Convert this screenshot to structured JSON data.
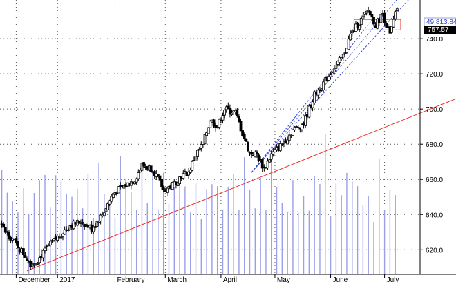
{
  "chart_data": {
    "type": "candlestick",
    "title": "",
    "xlabel": "",
    "ylabel": "",
    "ylim": [
      606,
      762
    ],
    "y_ticks": [
      620,
      640,
      660,
      680,
      700,
      720,
      740
    ],
    "y_tick_labels": [
      "620.0",
      "640.0",
      "660.0",
      "680.0",
      "700.0",
      "720.0",
      "740.0"
    ],
    "x_ticks": [
      {
        "label": "December",
        "day": 0
      },
      {
        "label": "2017",
        "day": 23
      },
      {
        "label": "February",
        "day": 55
      },
      {
        "label": "March",
        "day": 83
      },
      {
        "label": "April",
        "day": 114
      },
      {
        "label": "May",
        "day": 144
      },
      {
        "label": "June",
        "day": 175
      },
      {
        "label": "July",
        "day": 205
      }
    ],
    "grid": true,
    "price_badge": "757.57",
    "volume_badge": "49,813.84",
    "price_path": [
      [
        -9,
        634
      ],
      [
        -2,
        626
      ],
      [
        4,
        618
      ],
      [
        8,
        612
      ],
      [
        12,
        614
      ],
      [
        18,
        622
      ],
      [
        24,
        628
      ],
      [
        30,
        634
      ],
      [
        36,
        636
      ],
      [
        42,
        632
      ],
      [
        48,
        640
      ],
      [
        54,
        652
      ],
      [
        60,
        656
      ],
      [
        66,
        660
      ],
      [
        70,
        668
      ],
      [
        76,
        666
      ],
      [
        82,
        654
      ],
      [
        86,
        656
      ],
      [
        92,
        662
      ],
      [
        96,
        664
      ],
      [
        100,
        674
      ],
      [
        104,
        680
      ],
      [
        108,
        694
      ],
      [
        112,
        690
      ],
      [
        116,
        700
      ],
      [
        122,
        698
      ],
      [
        126,
        686
      ],
      [
        130,
        675
      ],
      [
        134,
        674
      ],
      [
        138,
        666
      ],
      [
        142,
        674
      ],
      [
        148,
        680
      ],
      [
        154,
        688
      ],
      [
        160,
        692
      ],
      [
        166,
        708
      ],
      [
        172,
        716
      ],
      [
        176,
        722
      ],
      [
        182,
        730
      ],
      [
        186,
        742
      ],
      [
        190,
        748
      ],
      [
        196,
        756
      ],
      [
        200,
        748
      ],
      [
        204,
        754
      ],
      [
        206,
        748
      ],
      [
        208,
        742
      ],
      [
        212,
        757.57
      ]
    ],
    "candles_per_day": 1,
    "last_day": 212,
    "trend_lines": [
      {
        "name": "long-term support",
        "color": "#ee2b24",
        "points": [
          [
            6,
            608
          ],
          [
            250,
            708
          ]
        ]
      },
      {
        "name": "upper channel",
        "color": "#3646d6",
        "dashed": true,
        "points": [
          [
            131,
            664
          ],
          [
            215,
            766
          ]
        ]
      },
      {
        "name": "middle channel",
        "color": "#3646d6",
        "dashed": true,
        "points": [
          [
            131,
            664
          ],
          [
            199,
            752
          ]
        ]
      },
      {
        "name": "lower channel",
        "color": "#3646d6",
        "dashed": true,
        "points": [
          [
            131,
            664
          ],
          [
            220,
            764
          ]
        ]
      }
    ],
    "resistance_box": {
      "color": "#ee2b24",
      "day_from": 188,
      "day_to": 214,
      "price_high": 751,
      "price_low": 745
    },
    "volume": {
      "color": "#9a9fe8",
      "relative_heights": [
        0.66,
        0.5,
        0.57,
        0.45,
        0.56,
        0.38,
        0.65,
        0.5,
        0.6,
        0.44,
        0.7,
        0.52,
        0.47,
        0.62,
        0.54,
        0.48,
        0.58,
        0.43,
        0.68,
        0.51,
        0.55,
        0.46,
        0.61,
        0.49,
        0.64,
        0.42,
        0.57,
        0.53,
        0.72,
        0.4,
        0.59,
        0.5
      ]
    }
  }
}
